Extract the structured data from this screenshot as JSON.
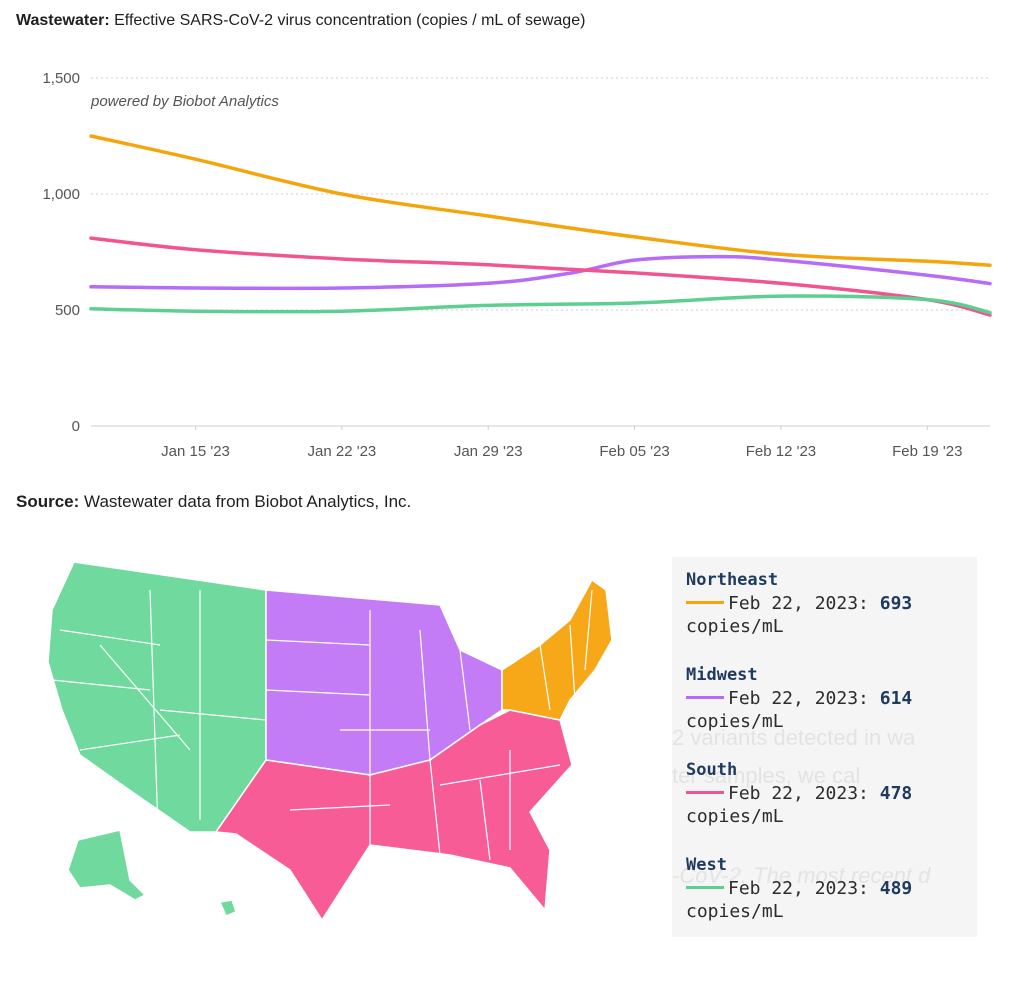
{
  "title": {
    "bold": "Wastewater:",
    "text": "Effective SARS-CoV-2 virus concentration (copies / mL of sewage)"
  },
  "source": {
    "bold": "Source:",
    "text": "Wastewater data from Biobot Analytics, Inc."
  },
  "chart_data": {
    "type": "line",
    "title": "Wastewater: Effective SARS-CoV-2 virus concentration (copies / mL of sewage)",
    "credit": "powered by Biobot Analytics",
    "xlabel": "",
    "ylabel": "",
    "ylim": [
      0,
      1500
    ],
    "y_ticks": [
      0,
      500,
      1000,
      1500
    ],
    "y_tick_labels": [
      "0",
      "500",
      "1,000",
      "1,500"
    ],
    "x_ticks": [
      7,
      14,
      21,
      28,
      35,
      42
    ],
    "x_tick_labels": [
      "Jan 15 '23",
      "Jan 22 '23",
      "Jan 29 '23",
      "Feb 05 '23",
      "Feb 12 '23",
      "Feb 19 '23"
    ],
    "x_range": [
      2,
      45
    ],
    "grid": true,
    "series": [
      {
        "name": "Northeast",
        "color": "#f5a50c",
        "x": [
          2,
          7,
          14,
          21,
          28,
          35,
          42,
          45
        ],
        "values": [
          1250,
          1150,
          1000,
          905,
          815,
          740,
          710,
          693
        ]
      },
      {
        "name": "Midwest",
        "color": "#b66cf4",
        "x": [
          2,
          7,
          14,
          21,
          25,
          28,
          32,
          35,
          42,
          45
        ],
        "values": [
          600,
          595,
          595,
          615,
          660,
          715,
          730,
          715,
          650,
          614
        ]
      },
      {
        "name": "South",
        "color": "#f05590",
        "x": [
          2,
          7,
          14,
          21,
          28,
          35,
          42,
          45
        ],
        "values": [
          810,
          760,
          720,
          695,
          660,
          615,
          545,
          478
        ]
      },
      {
        "name": "West",
        "color": "#5ccf91",
        "x": [
          2,
          7,
          14,
          21,
          28,
          35,
          42,
          45
        ],
        "values": [
          505,
          495,
          495,
          520,
          530,
          560,
          545,
          489
        ]
      }
    ]
  },
  "legend": {
    "items": [
      {
        "region": "Northeast",
        "date": "Feb 22, 2023:",
        "value": "693",
        "unit": "copies/mL",
        "color": "#f5a50c"
      },
      {
        "region": "Midwest",
        "date": "Feb 22, 2023:",
        "value": "614",
        "unit": "copies/mL",
        "color": "#b66cf4"
      },
      {
        "region": "South",
        "date": "Feb 22, 2023:",
        "value": "478",
        "unit": "copies/mL",
        "color": "#f05590"
      },
      {
        "region": "West",
        "date": "Feb 22, 2023:",
        "value": "489",
        "unit": "copies/mL",
        "color": "#5ccf91"
      }
    ]
  },
  "map": {
    "regions": [
      {
        "name": "West",
        "color": "#6fd99e"
      },
      {
        "name": "Midwest",
        "color": "#c47cf6"
      },
      {
        "name": "South",
        "color": "#f75c97"
      },
      {
        "name": "Northeast",
        "color": "#f6a818"
      }
    ]
  }
}
